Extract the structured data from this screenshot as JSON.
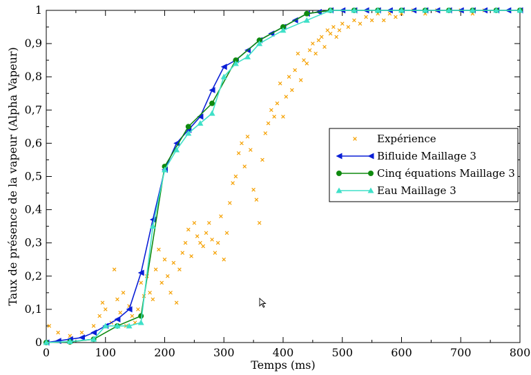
{
  "chart_data": {
    "type": "line",
    "title": "",
    "xlabel": "Temps (ms)",
    "ylabel": "Taux de présence de la vapeur  (Alpha Vapeur)",
    "xlim": [
      0,
      800
    ],
    "ylim": [
      0,
      1
    ],
    "xticks": [
      "0",
      "100",
      "200",
      "300",
      "400",
      "500",
      "600",
      "700",
      "800"
    ],
    "yticks": [
      "0",
      "0,1",
      "0,2",
      "0,3",
      "0,4",
      "0,5",
      "0,6",
      "0,7",
      "0,8",
      "0,9",
      "1"
    ],
    "grid": false,
    "legend_position": "right-center",
    "series": [
      {
        "name": "Expérience",
        "style": "scatter-x",
        "color": "#f5a000",
        "points": [
          [
            5,
            0.05
          ],
          [
            20,
            0.03
          ],
          [
            40,
            0.02
          ],
          [
            60,
            0.03
          ],
          [
            80,
            0.05
          ],
          [
            90,
            0.08
          ],
          [
            95,
            0.12
          ],
          [
            100,
            0.1
          ],
          [
            110,
            0.06
          ],
          [
            115,
            0.22
          ],
          [
            120,
            0.13
          ],
          [
            125,
            0.09
          ],
          [
            130,
            0.15
          ],
          [
            135,
            0.05
          ],
          [
            140,
            0.11
          ],
          [
            145,
            0.08
          ],
          [
            150,
            0.06
          ],
          [
            155,
            0.1
          ],
          [
            160,
            0.18
          ],
          [
            165,
            0.14
          ],
          [
            170,
            0.2
          ],
          [
            175,
            0.15
          ],
          [
            180,
            0.13
          ],
          [
            185,
            0.22
          ],
          [
            190,
            0.28
          ],
          [
            195,
            0.18
          ],
          [
            200,
            0.25
          ],
          [
            205,
            0.2
          ],
          [
            210,
            0.15
          ],
          [
            215,
            0.24
          ],
          [
            220,
            0.12
          ],
          [
            225,
            0.22
          ],
          [
            230,
            0.27
          ],
          [
            235,
            0.3
          ],
          [
            240,
            0.34
          ],
          [
            245,
            0.26
          ],
          [
            250,
            0.36
          ],
          [
            255,
            0.32
          ],
          [
            260,
            0.3
          ],
          [
            265,
            0.29
          ],
          [
            270,
            0.33
          ],
          [
            275,
            0.36
          ],
          [
            280,
            0.31
          ],
          [
            285,
            0.27
          ],
          [
            290,
            0.3
          ],
          [
            295,
            0.38
          ],
          [
            300,
            0.25
          ],
          [
            305,
            0.33
          ],
          [
            310,
            0.42
          ],
          [
            315,
            0.48
          ],
          [
            320,
            0.5
          ],
          [
            325,
            0.57
          ],
          [
            330,
            0.6
          ],
          [
            335,
            0.53
          ],
          [
            340,
            0.62
          ],
          [
            345,
            0.58
          ],
          [
            350,
            0.46
          ],
          [
            355,
            0.43
          ],
          [
            360,
            0.36
          ],
          [
            365,
            0.55
          ],
          [
            370,
            0.63
          ],
          [
            375,
            0.66
          ],
          [
            380,
            0.7
          ],
          [
            385,
            0.68
          ],
          [
            390,
            0.72
          ],
          [
            395,
            0.78
          ],
          [
            400,
            0.68
          ],
          [
            405,
            0.74
          ],
          [
            410,
            0.8
          ],
          [
            415,
            0.76
          ],
          [
            420,
            0.82
          ],
          [
            425,
            0.87
          ],
          [
            430,
            0.79
          ],
          [
            435,
            0.85
          ],
          [
            440,
            0.84
          ],
          [
            445,
            0.88
          ],
          [
            450,
            0.9
          ],
          [
            455,
            0.87
          ],
          [
            460,
            0.91
          ],
          [
            465,
            0.92
          ],
          [
            470,
            0.89
          ],
          [
            475,
            0.94
          ],
          [
            480,
            0.93
          ],
          [
            485,
            0.95
          ],
          [
            490,
            0.92
          ],
          [
            495,
            0.94
          ],
          [
            500,
            0.96
          ],
          [
            510,
            0.95
          ],
          [
            520,
            0.97
          ],
          [
            530,
            0.96
          ],
          [
            540,
            0.98
          ],
          [
            550,
            0.97
          ],
          [
            560,
            0.99
          ],
          [
            570,
            0.97
          ],
          [
            580,
            0.99
          ],
          [
            590,
            0.98
          ],
          [
            600,
            0.99
          ],
          [
            620,
            1.0
          ],
          [
            640,
            0.99
          ],
          [
            660,
            1.0
          ],
          [
            680,
            1.0
          ],
          [
            700,
            1.0
          ],
          [
            720,
            0.99
          ],
          [
            740,
            1.0
          ],
          [
            760,
            1.0
          ]
        ]
      },
      {
        "name": "Bifluide Maillage 3",
        "style": "line-triangle-left",
        "color": "#0a1fd6",
        "x": [
          0,
          20,
          40,
          60,
          80,
          100,
          120,
          140,
          160,
          180,
          200,
          220,
          240,
          260,
          280,
          300,
          320,
          340,
          360,
          380,
          400,
          420,
          440,
          460,
          480,
          500,
          520,
          540,
          560,
          580,
          600,
          620,
          640,
          660,
          680,
          700,
          720,
          740,
          760,
          780,
          800
        ],
        "y": [
          0.0,
          0.005,
          0.01,
          0.015,
          0.03,
          0.05,
          0.07,
          0.1,
          0.21,
          0.37,
          0.52,
          0.6,
          0.64,
          0.68,
          0.76,
          0.83,
          0.85,
          0.88,
          0.91,
          0.93,
          0.95,
          0.97,
          0.99,
          0.995,
          1,
          1,
          1,
          1,
          1,
          1,
          1,
          1,
          1,
          1,
          1,
          1,
          1,
          1,
          1,
          1,
          1
        ]
      },
      {
        "name": "Cinq équations Maillage 3",
        "style": "line-circle",
        "color": "#0f8a0f",
        "x": [
          0,
          40,
          80,
          120,
          160,
          200,
          240,
          280,
          320,
          360,
          400,
          440,
          480,
          520,
          560,
          600,
          640,
          680,
          720,
          760,
          800
        ],
        "y": [
          0.0,
          0.002,
          0.01,
          0.05,
          0.08,
          0.53,
          0.65,
          0.72,
          0.85,
          0.91,
          0.95,
          0.99,
          1,
          1,
          1,
          1,
          1,
          1,
          1,
          1,
          1
        ]
      },
      {
        "name": "Eau Maillage 3",
        "style": "line-triangle-up",
        "color": "#3fe0c8",
        "x": [
          0,
          40,
          80,
          100,
          120,
          140,
          160,
          180,
          200,
          220,
          240,
          260,
          280,
          300,
          320,
          340,
          360,
          400,
          440,
          480,
          520,
          560,
          600,
          640,
          680,
          720,
          760,
          800
        ],
        "y": [
          0.0,
          0.003,
          0.01,
          0.05,
          0.05,
          0.05,
          0.06,
          0.35,
          0.52,
          0.58,
          0.63,
          0.66,
          0.69,
          0.8,
          0.84,
          0.86,
          0.9,
          0.94,
          0.97,
          1,
          1,
          1,
          1,
          1,
          1,
          1,
          1,
          1
        ]
      }
    ]
  }
}
